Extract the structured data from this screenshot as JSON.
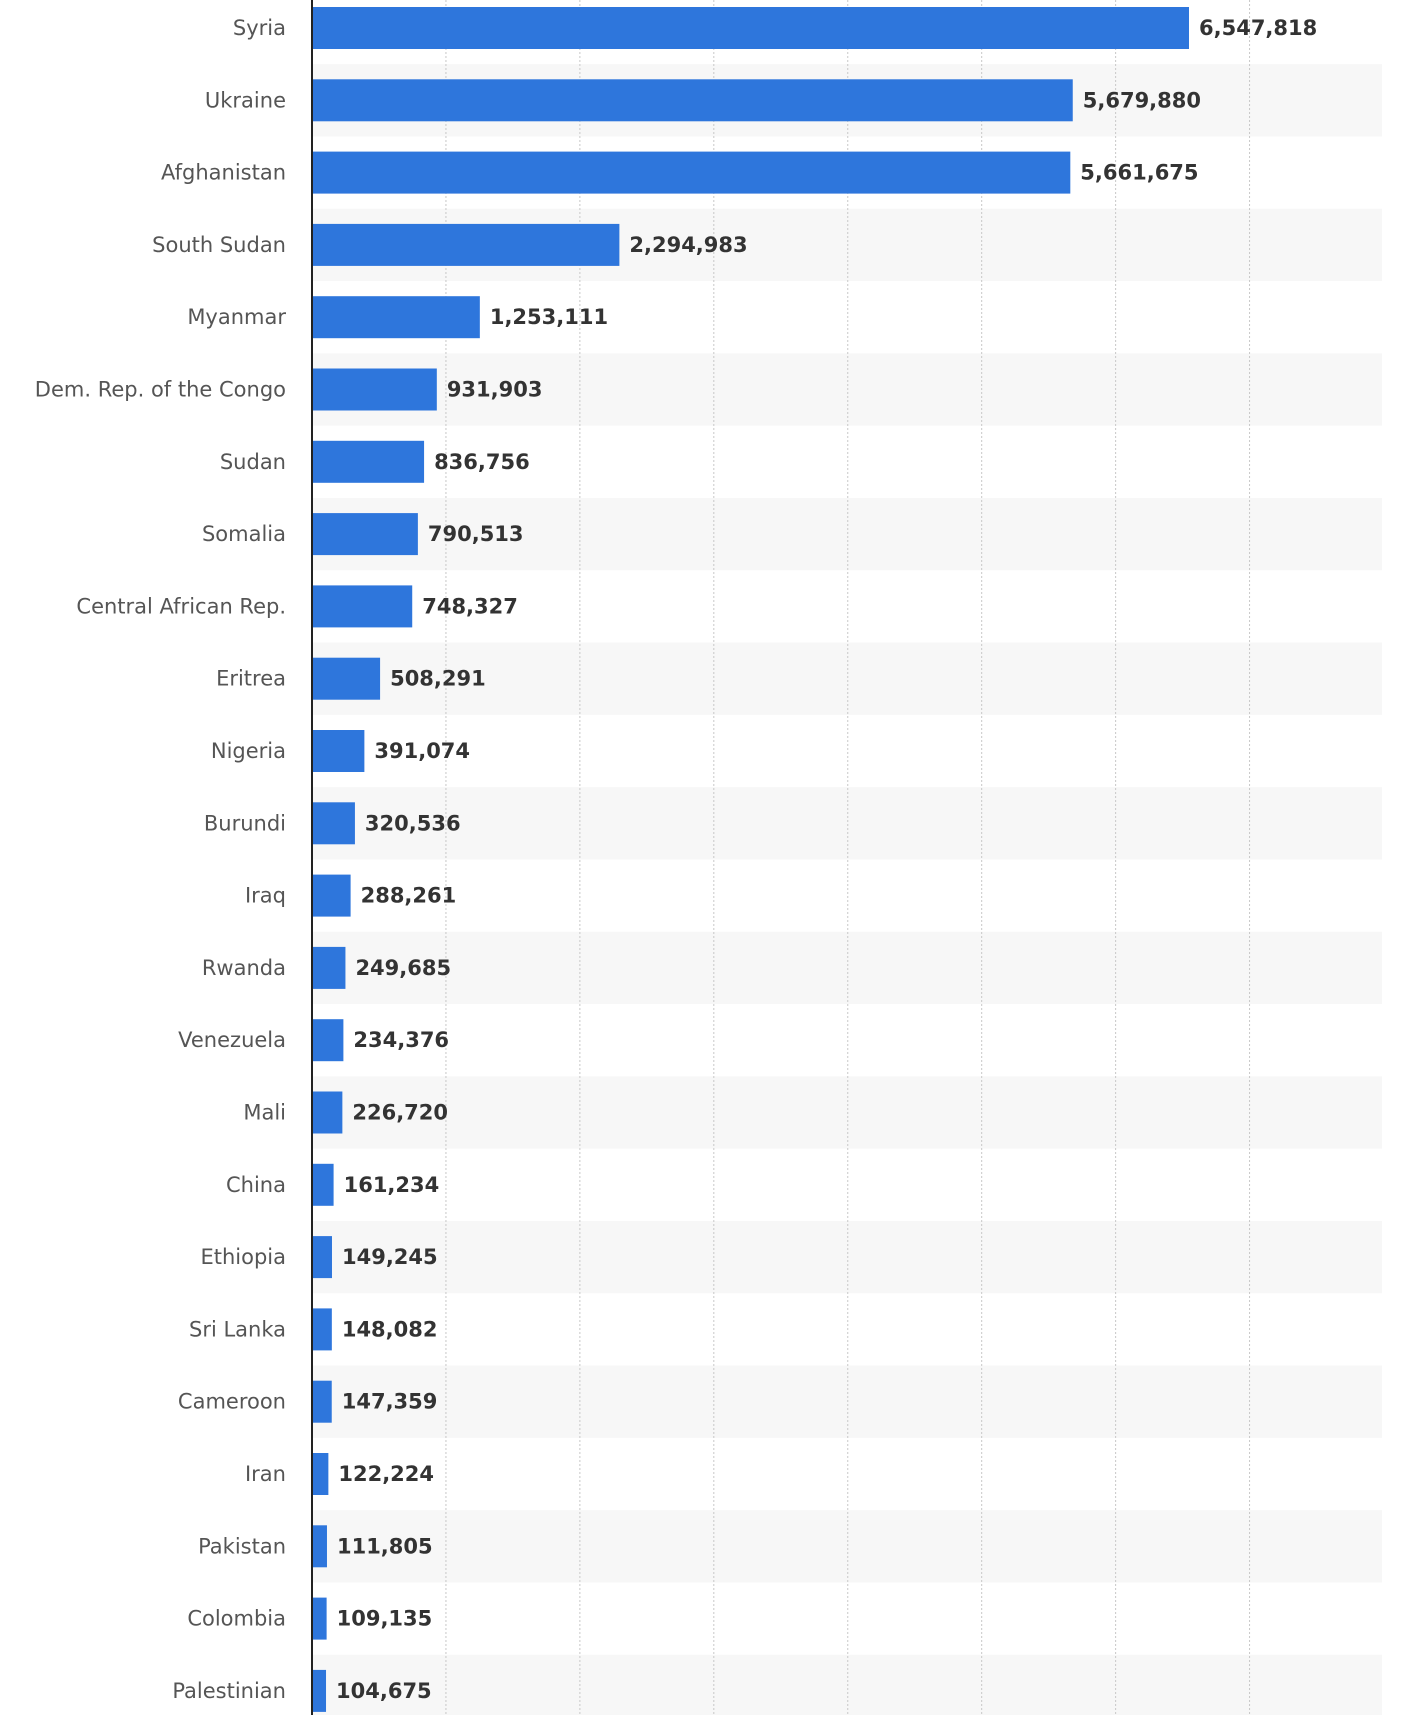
{
  "chart_data": {
    "type": "bar",
    "orientation": "horizontal",
    "title": "",
    "xlabel": "",
    "ylabel": "",
    "xlim": [
      0,
      8000000
    ],
    "grid": true,
    "colors": {
      "bar": "#2e76dc",
      "band": "#f7f7f7",
      "grid": "#c8c8c8",
      "axis": "#222222"
    },
    "categories": [
      "Syria",
      "Ukraine",
      "Afghanistan",
      "South Sudan",
      "Myanmar",
      "Dem. Rep. of the Congo",
      "Sudan",
      "Somalia",
      "Central African Rep.",
      "Eritrea",
      "Nigeria",
      "Burundi",
      "Iraq",
      "Rwanda",
      "Venezuela",
      "Mali",
      "China",
      "Ethiopia",
      "Sri Lanka",
      "Cameroon",
      "Iran",
      "Pakistan",
      "Colombia",
      "Palestinian"
    ],
    "values": [
      6547818,
      5679880,
      5661675,
      2294983,
      1253111,
      931903,
      836756,
      790513,
      748327,
      508291,
      391074,
      320536,
      288261,
      249685,
      234376,
      226720,
      161234,
      149245,
      148082,
      147359,
      122224,
      111805,
      109135,
      104675
    ],
    "value_labels": [
      "6,547,818",
      "5,679,880",
      "5,661,675",
      "2,294,983",
      "1,253,111",
      "931,903",
      "836,756",
      "790,513",
      "748,327",
      "508,291",
      "391,074",
      "320,536",
      "288,261",
      "249,685",
      "234,376",
      "226,720",
      "161,234",
      "149,245",
      "148,082",
      "147,359",
      "122,224",
      "111,805",
      "109,135",
      "104,675"
    ]
  }
}
